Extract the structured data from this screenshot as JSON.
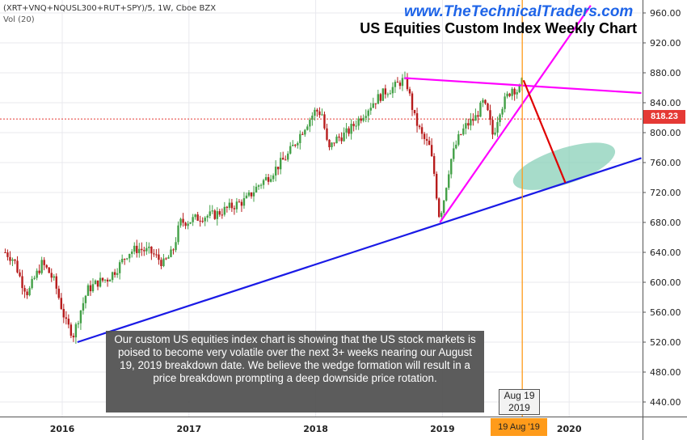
{
  "header": {
    "symbol": "(XRT+VNQ+NQUSL300+RUT+SPY)/5, 1W, Cboe BZX",
    "volume_label": "Vol (20)",
    "website": "www.TheTechnicalTraders.com",
    "title": "US Equities Custom Index Weekly Chart"
  },
  "caption": "Our custom US equities index chart is showing that the US stock markets is poised to become very volatile over the next 3+ weeks nearing our August 19, 2019 breakdown date.  We believe the wedge formation will result in a price breakdown prompting a deep downside price rotation.",
  "markers": {
    "date_label_line1": "Aug 19",
    "date_label_line2": "2019",
    "date_tag": "19 Aug '19",
    "last_price": "818.23"
  },
  "colors": {
    "up": "#43a047",
    "down": "#b71c1c",
    "support_line": "#1a1ae6",
    "wedge_lines": "#ff00ff",
    "projection": "#e00000",
    "target_zone": "#82cdb4",
    "date_line": "#ff9b1a",
    "price_line": "#e53935",
    "website": "#1e64e8"
  },
  "chart_data": {
    "type": "candlestick",
    "ylim": [
      400,
      970
    ],
    "y_ticks": [
      440,
      480,
      520,
      560,
      600,
      640,
      680,
      720,
      760,
      800,
      840,
      880,
      920,
      960
    ],
    "x_ticks": [
      {
        "label": "2016",
        "x": 2016.0
      },
      {
        "label": "2017",
        "x": 2017.0
      },
      {
        "label": "2018",
        "x": 2018.0
      },
      {
        "label": "2019",
        "x": 2019.0
      },
      {
        "label": "2020",
        "x": 2020.0
      }
    ],
    "xlim": [
      2015.55,
      2020.57
    ],
    "price_line": 818.23,
    "event_date": 2019.63,
    "path": [
      [
        2015.55,
        640
      ],
      [
        2015.62,
        630
      ],
      [
        2015.68,
        600
      ],
      [
        2015.73,
        585
      ],
      [
        2015.78,
        605
      ],
      [
        2015.84,
        625
      ],
      [
        2015.89,
        615
      ],
      [
        2015.94,
        600
      ],
      [
        2016.03,
        545
      ],
      [
        2016.09,
        530
      ],
      [
        2016.14,
        560
      ],
      [
        2016.2,
        590
      ],
      [
        2016.28,
        600
      ],
      [
        2016.36,
        605
      ],
      [
        2016.44,
        620
      ],
      [
        2016.52,
        640
      ],
      [
        2016.6,
        645
      ],
      [
        2016.7,
        640
      ],
      [
        2016.8,
        625
      ],
      [
        2016.87,
        640
      ],
      [
        2016.93,
        680
      ],
      [
        2017.0,
        682
      ],
      [
        2017.1,
        688
      ],
      [
        2017.2,
        690
      ],
      [
        2017.32,
        700
      ],
      [
        2017.45,
        710
      ],
      [
        2017.55,
        730
      ],
      [
        2017.62,
        740
      ],
      [
        2017.7,
        755
      ],
      [
        2017.78,
        770
      ],
      [
        2017.85,
        790
      ],
      [
        2017.92,
        810
      ],
      [
        2018.0,
        830
      ],
      [
        2018.05,
        825
      ],
      [
        2018.1,
        775
      ],
      [
        2018.15,
        790
      ],
      [
        2018.25,
        800
      ],
      [
        2018.35,
        820
      ],
      [
        2018.45,
        840
      ],
      [
        2018.55,
        855
      ],
      [
        2018.63,
        862
      ],
      [
        2018.68,
        870
      ],
      [
        2018.72,
        865
      ],
      [
        2018.78,
        820
      ],
      [
        2018.84,
        795
      ],
      [
        2018.9,
        780
      ],
      [
        2018.94,
        740
      ],
      [
        2018.97,
        690
      ],
      [
        2019.0,
        700
      ],
      [
        2019.06,
        760
      ],
      [
        2019.12,
        790
      ],
      [
        2019.18,
        808
      ],
      [
        2019.26,
        820
      ],
      [
        2019.32,
        840
      ],
      [
        2019.36,
        825
      ],
      [
        2019.4,
        795
      ],
      [
        2019.45,
        830
      ],
      [
        2019.5,
        845
      ],
      [
        2019.55,
        860
      ],
      [
        2019.6,
        855
      ],
      [
        2019.63,
        868
      ],
      [
        2019.64,
        850
      ]
    ],
    "lines": [
      {
        "role": "support",
        "from": [
          2016.12,
          520
        ],
        "to": [
          2020.57,
          766
        ]
      },
      {
        "role": "wedge-upper",
        "from": [
          2018.7,
          873
        ],
        "to": [
          2020.57,
          853
        ]
      },
      {
        "role": "wedge-lower",
        "from": [
          2018.98,
          680
        ],
        "to": [
          2020.17,
          970
        ]
      },
      {
        "role": "projection",
        "from": [
          2019.64,
          870
        ],
        "to": [
          2019.97,
          733
        ]
      }
    ],
    "target_zone": {
      "x_range": [
        2019.55,
        2020.37
      ],
      "y_range": [
        728,
        782
      ]
    }
  }
}
